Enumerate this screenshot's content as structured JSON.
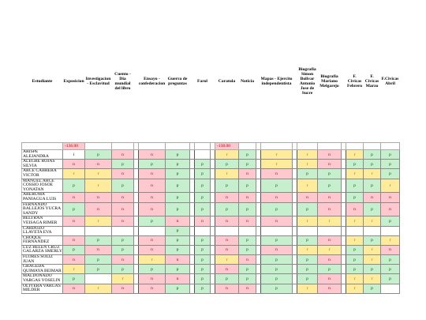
{
  "headers": [
    "Estudiante",
    "Exposicion",
    "Investigacion - Esclavitud",
    "Cuento - Dia mundial del libro",
    "Ensayo - confederacion",
    "Guerra de preguntas",
    "Farol",
    "Caratula",
    "Noticia",
    "Mapas - Ejercito independentista",
    "Biografia Simon Bolivar Antonio Jose de Sucre",
    "Biografia Mariano Melgarejo",
    "F. Civicas Febrero",
    "F. Civicas Marzo",
    "F.Civicas Abril"
  ],
  "totals": {
    "exposicion": "-136.00",
    "caratula": "-138.00"
  },
  "students": [
    {
      "name": "ARISPE ALEJANDRA",
      "marks": [
        "i",
        "p",
        "n",
        "n",
        "p",
        "",
        "r",
        "p",
        "r",
        "r",
        "n",
        "r",
        "p",
        "p"
      ]
    },
    {
      "name": "ALEGRE ROJAS SILVIA",
      "marks": [
        "n",
        "n",
        "p",
        "p",
        "p",
        "p",
        "p",
        "p",
        "r",
        "r",
        "n",
        "p",
        "p",
        "p"
      ]
    },
    {
      "name": "ARCE CABRERA VICTOR",
      "marks": [
        "r",
        "r",
        "n",
        "n",
        "p",
        "p",
        "r",
        "n",
        "n",
        "p",
        "p",
        "r",
        "r",
        "p"
      ]
    },
    {
      "name": "MANUEL ARCE COSSIO JOSOE YONATAN",
      "marks": [
        "p",
        "r",
        "p",
        "n",
        "p",
        "p",
        "p",
        "p",
        "p",
        "r",
        "p",
        "p",
        "p",
        "r"
      ]
    },
    {
      "name": "ARERUMA PANIAGUA LUIS",
      "marks": [
        "n",
        "n",
        "n",
        "n",
        "p",
        "p",
        "n",
        "n",
        "n",
        "n",
        "n",
        "p",
        "n",
        "n"
      ]
    },
    {
      "name": "FERNANDO BALLEJOS YUCRA SANDY",
      "marks": [
        "p",
        "n",
        "n",
        "n",
        "p",
        "p",
        "p",
        "p",
        "p",
        "p",
        "n",
        "n",
        "p",
        "n"
      ]
    },
    {
      "name": "BELTRAN VEISAGA RIMER",
      "marks": [
        "n",
        "r",
        "n",
        "p",
        "n",
        "n",
        "n",
        "n",
        "n",
        "r",
        "r",
        "r",
        "r",
        "p"
      ]
    },
    {
      "name": "CARDOZO LLAVETA EVA",
      "marks": [
        "",
        "",
        "",
        "",
        "p",
        "",
        "",
        "",
        "",
        "",
        "",
        "",
        "",
        ""
      ]
    },
    {
      "name": "CHOQUE FERNANDEZ",
      "marks": [
        "n",
        "p",
        "p",
        "n",
        "p",
        "p",
        "n",
        "p",
        "p",
        "p",
        "n",
        "r",
        "p",
        "r"
      ]
    },
    {
      "name": "LUZ BELEN CRUZ GALARZA SMERLY",
      "marks": [
        "p",
        "n",
        "p",
        "n",
        "p",
        "p",
        "n",
        "p",
        "n",
        "r",
        "r",
        "p",
        "r",
        "n"
      ]
    },
    {
      "name": "FLORES SOLIZ JUAN",
      "marks": [
        "n",
        "p",
        "n",
        "r",
        "n",
        "p",
        "r",
        "n",
        "p",
        "p",
        "n",
        "p",
        "r",
        "p"
      ]
    },
    {
      "name": "GRAGEDA QUIMAYA BEIMAR",
      "marks": [
        "r",
        "p",
        "p",
        "p",
        "p",
        "p",
        "n",
        "p",
        "p",
        "p",
        "p",
        "p",
        "p",
        "p"
      ]
    },
    {
      "name": "MALDONADO VARGAS YOSELIN",
      "marks": [
        "p",
        "",
        "r",
        "n",
        "n",
        "p",
        "p",
        "p",
        "p",
        "p",
        "n",
        "r",
        "r",
        "p"
      ]
    },
    {
      "name": "OLIVERA VARGAS MILDER",
      "marks": [
        "n",
        "r",
        "n",
        "n",
        "p",
        "p",
        "n",
        "n",
        "p",
        "r",
        "n",
        "r",
        "p",
        ""
      ]
    }
  ]
}
